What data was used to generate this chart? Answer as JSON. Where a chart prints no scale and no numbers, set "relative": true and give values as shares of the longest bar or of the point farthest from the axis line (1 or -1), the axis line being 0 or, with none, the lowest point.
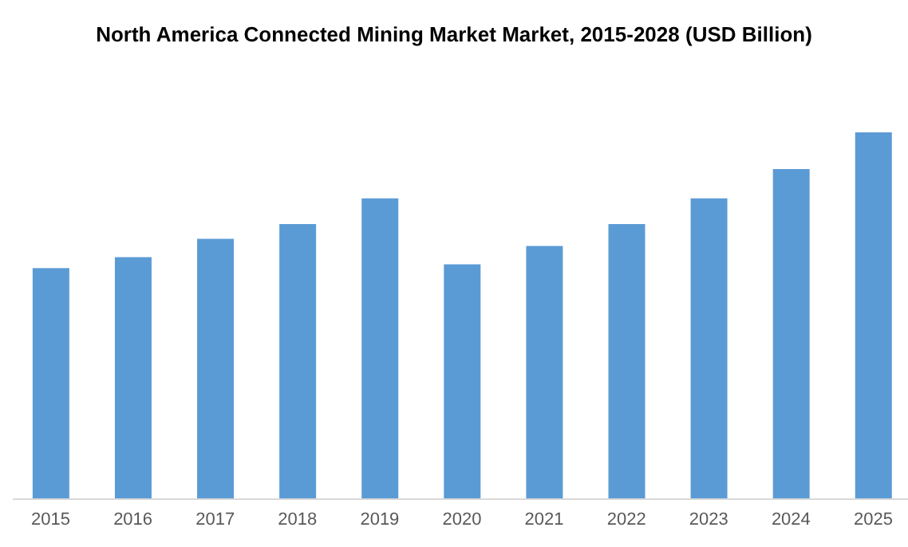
{
  "chart_data": {
    "type": "bar",
    "title": "North America Connected Mining Market Market, 2015-2028 (USD Billion)",
    "categories": [
      "2015",
      "2016",
      "2017",
      "2018",
      "2019",
      "2020",
      "2021",
      "2022",
      "2023",
      "2024",
      "2025"
    ],
    "values": [
      0.63,
      0.66,
      0.71,
      0.75,
      0.82,
      0.64,
      0.69,
      0.75,
      0.82,
      0.9,
      1
    ],
    "color": "#5b9bd5",
    "relative": true,
    "grid": false,
    "legend": false
  }
}
